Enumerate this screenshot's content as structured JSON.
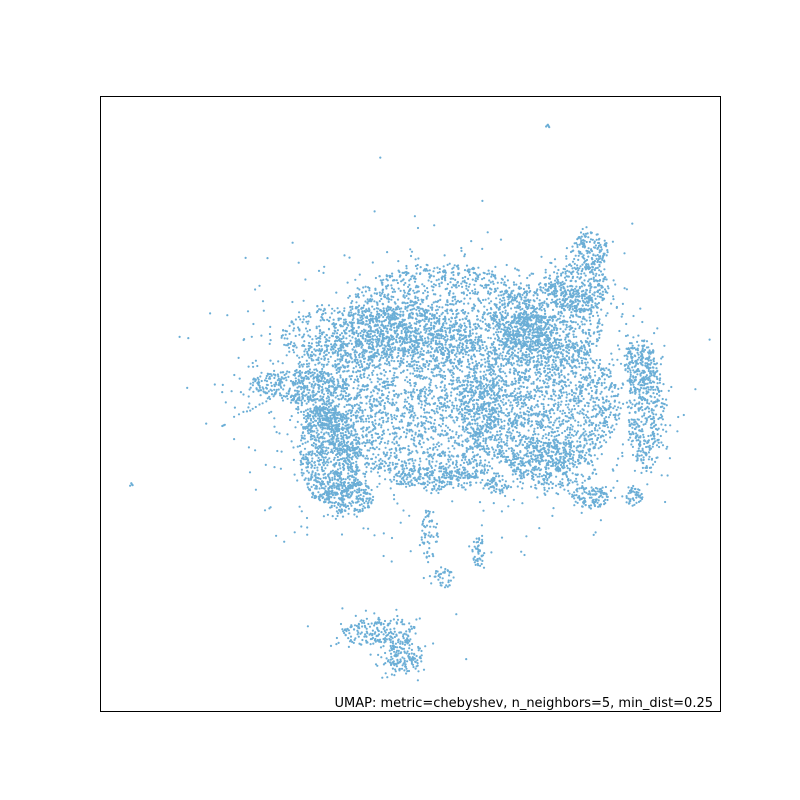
{
  "chart_data": {
    "type": "scatter",
    "xlabel": "",
    "ylabel": "",
    "ticks": "hidden",
    "grid": false,
    "legend": "none",
    "point_color": "#6baed6",
    "annotation": "UMAP: metric=chebyshev, n_neighbors=5, min_dist=0.25",
    "annotation_position": "bottom-right",
    "xlim": [
      0,
      100
    ],
    "ylim": [
      0,
      100
    ],
    "series": [
      {
        "values": [
          [
            47.0,
            6.1
          ],
          [
            57.4,
            15.9
          ],
          [
            59.0,
            8.6
          ],
          [
            14.1,
            60.8
          ],
          [
            12.7,
            61.0
          ],
          [
            26.5,
            32.8
          ],
          [
            44.2,
            81.4
          ],
          [
            24.1,
            49.0
          ],
          [
            17.0,
            46.9
          ],
          [
            32.0,
            65.0
          ],
          [
            30.0,
            58.0
          ],
          [
            47.0,
            47.0
          ],
          [
            68.0,
            38.0
          ],
          [
            25.0,
            54.0
          ],
          [
            58.0,
            53.0
          ],
          [
            61.0,
            61.0
          ]
        ]
      }
    ],
    "clusters": [
      {
        "cx": 48,
        "cy": 52,
        "rx": 17,
        "ry": 14,
        "n": 2600
      },
      {
        "cx": 71,
        "cy": 50,
        "rx": 13,
        "ry": 11,
        "n": 1900
      },
      {
        "cx": 55,
        "cy": 65,
        "rx": 15,
        "ry": 8,
        "n": 1200
      },
      {
        "cx": 72,
        "cy": 63,
        "rx": 9,
        "ry": 7,
        "n": 700
      },
      {
        "cx": 40,
        "cy": 61,
        "rx": 11,
        "ry": 5,
        "n": 500
      },
      {
        "cx": 77,
        "cy": 69,
        "rx": 5,
        "ry": 4,
        "n": 350
      },
      {
        "cx": 79,
        "cy": 75,
        "rx": 3,
        "ry": 3,
        "n": 160
      },
      {
        "cx": 69,
        "cy": 62,
        "rx": 4,
        "ry": 3,
        "n": 250
      },
      {
        "cx": 88,
        "cy": 49,
        "rx": 3,
        "ry": 10,
        "n": 420
      },
      {
        "cx": 87,
        "cy": 57,
        "rx": 2.5,
        "ry": 4,
        "n": 150
      },
      {
        "cx": 37,
        "cy": 42,
        "rx": 5,
        "ry": 8,
        "n": 700
      },
      {
        "cx": 40,
        "cy": 35,
        "rx": 4,
        "ry": 3,
        "n": 250
      },
      {
        "cx": 32,
        "cy": 53,
        "rx": 8,
        "ry": 2.5,
        "n": 350
      },
      {
        "cx": 36,
        "cy": 48,
        "rx": 3,
        "ry": 2,
        "n": 120
      },
      {
        "cx": 73,
        "cy": 40,
        "rx": 7,
        "ry": 4,
        "n": 350
      },
      {
        "cx": 79,
        "cy": 35,
        "rx": 3,
        "ry": 2,
        "n": 120
      },
      {
        "cx": 64,
        "cy": 37,
        "rx": 2,
        "ry": 1.5,
        "n": 60
      },
      {
        "cx": 86,
        "cy": 35,
        "rx": 1.5,
        "ry": 1.5,
        "n": 50
      },
      {
        "cx": 54,
        "cy": 38,
        "rx": 7,
        "ry": 2,
        "n": 220
      },
      {
        "cx": 60,
        "cy": 40,
        "rx": 3,
        "ry": 2,
        "n": 80
      },
      {
        "cx": 45,
        "cy": 13,
        "rx": 6,
        "ry": 2.5,
        "n": 220
      },
      {
        "cx": 49,
        "cy": 9,
        "rx": 3,
        "ry": 2.5,
        "n": 150
      },
      {
        "cx": 61,
        "cy": 26,
        "rx": 1,
        "ry": 2.5,
        "n": 50
      },
      {
        "cx": 55,
        "cy": 22,
        "rx": 2,
        "ry": 2,
        "n": 40
      },
      {
        "cx": 53,
        "cy": 29,
        "rx": 1.5,
        "ry": 4,
        "n": 60
      }
    ],
    "outliers": [
      [
        72.1,
        95.4
      ],
      [
        72.4,
        95.1
      ],
      [
        71.9,
        95.2
      ],
      [
        72.2,
        95.5
      ],
      [
        72.3,
        95.3
      ],
      [
        26.9,
        73.8
      ],
      [
        5.0,
        37.0
      ],
      [
        4.7,
        36.8
      ],
      [
        4.9,
        37.2
      ],
      [
        5.1,
        36.9
      ],
      [
        27.2,
        33.1
      ],
      [
        27.4,
        33.3
      ],
      [
        19.8,
        46.6
      ],
      [
        20.0,
        46.7
      ],
      [
        19.6,
        46.5
      ],
      [
        24.5,
        49.3
      ],
      [
        25.0,
        49.6
      ],
      [
        25.6,
        50.0
      ],
      [
        26.1,
        50.2
      ],
      [
        26.7,
        50.5
      ],
      [
        27.3,
        50.9
      ],
      [
        39.8,
        59.5
      ],
      [
        39.5,
        59.8
      ],
      [
        39.2,
        60.2
      ],
      [
        39.0,
        59.9
      ],
      [
        39.6,
        59.6
      ],
      [
        21.5,
        48.0
      ],
      [
        22.3,
        48.4
      ],
      [
        23.0,
        48.8
      ],
      [
        46.0,
        6.3
      ],
      [
        47.4,
        6.0
      ],
      [
        37.6,
        37.2
      ],
      [
        82.3,
        50.1
      ],
      [
        83.0,
        49.7
      ],
      [
        72.0,
        37.2
      ],
      [
        73.5,
        36.8
      ],
      [
        79.6,
        28.8
      ],
      [
        79.9,
        29.2
      ]
    ]
  }
}
